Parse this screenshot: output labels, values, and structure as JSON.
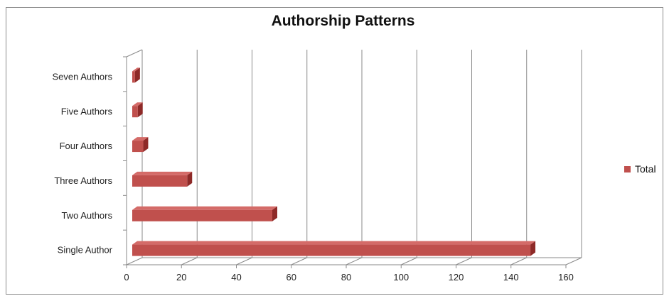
{
  "chart_data": {
    "type": "bar",
    "orientation": "horizontal",
    "title": "Authorship Patterns",
    "categories": [
      "Single Author",
      "Two Authors",
      "Three Authors",
      "Four Authors",
      "Five Authors",
      "Seven Authors"
    ],
    "series": [
      {
        "name": "Total",
        "values": [
          145,
          51,
          20,
          4,
          2,
          1
        ]
      }
    ],
    "x_ticks": [
      "0",
      "20",
      "40",
      "60",
      "80",
      "100",
      "120",
      "140",
      "160"
    ],
    "xlim": [
      0,
      160
    ],
    "grid": true,
    "legend_position": "right",
    "bar_color": "#c0504d",
    "bar_top_color": "#d46b68",
    "bar_side_color": "#8e2a28"
  }
}
